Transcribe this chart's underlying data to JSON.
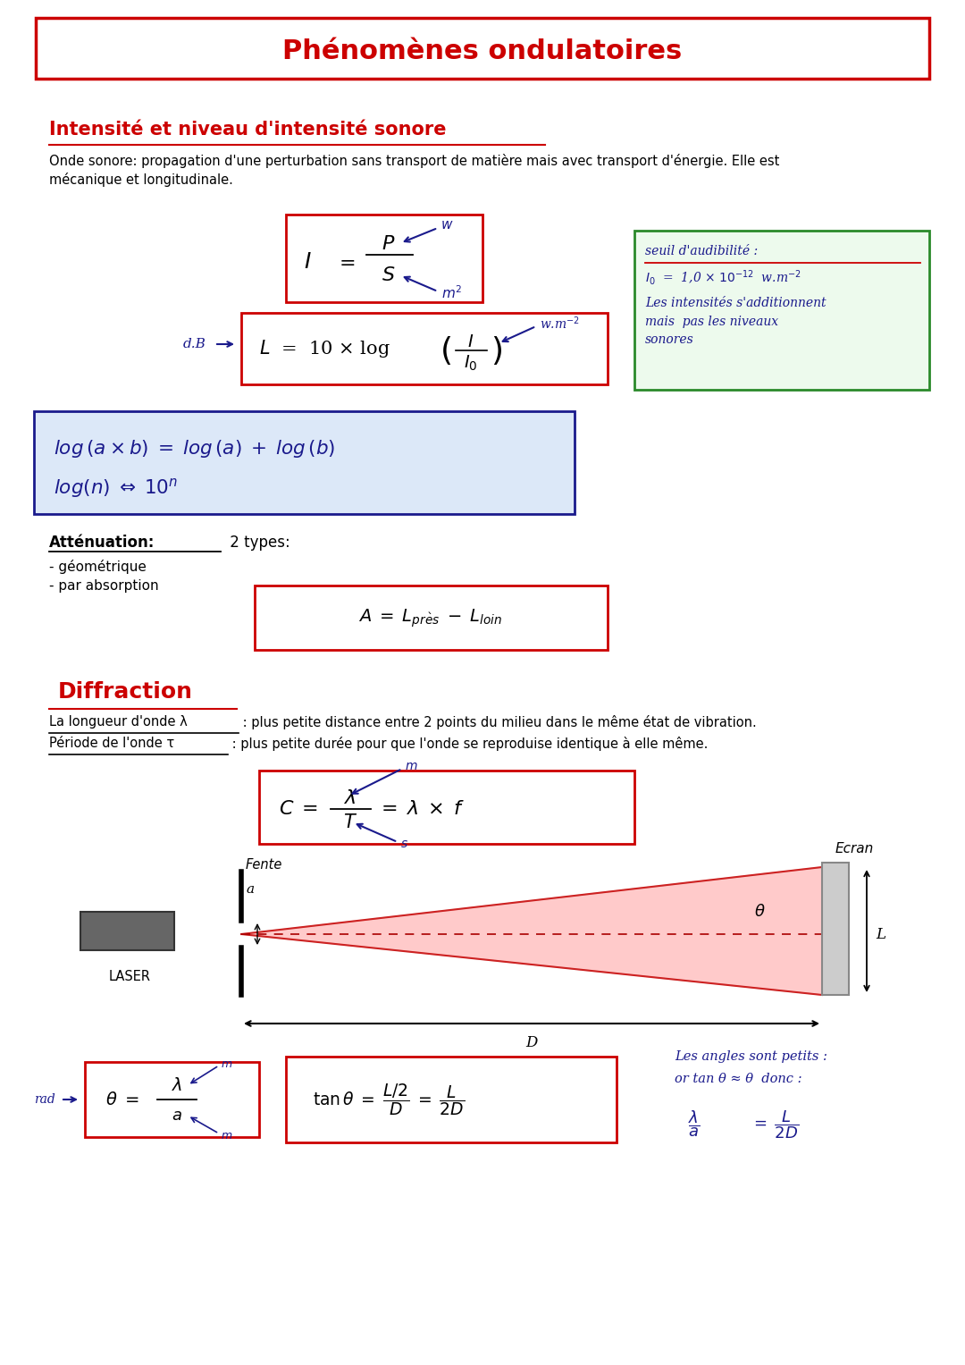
{
  "title": "Phénomènes ondulatoires",
  "red_color": "#cc0000",
  "dark_blue": "#1a1a8c",
  "green_color": "#2a8a2a",
  "light_blue_bg": "#dce8f8",
  "light_green_bg": "#edfaed",
  "bg_color": "#ffffff",
  "black": "#000000",
  "section1_title": "Intensité et niveau d'intensité sonore",
  "body_text1a": "Onde sonore: propagation d'une perturbation sans transport de matière mais avec transport d'énergie. Elle est",
  "body_text1b": "mécanique et longitudinale.",
  "seuil_title": "seuil d'audibilité :",
  "seuil_formula": "I₀  =  1,0 × 10⁻¹²  w.m⁻²",
  "seuil_note": "Les intensités s'additionnent\nmais  pas les niveaux\nsonores",
  "attenuation_label": "Atténuation:",
  "attenuation_suffix": " 2 types:",
  "attenuation_list1": "- géométrique",
  "attenuation_list2": "- par absorption",
  "section2_title": "Diffraction",
  "diff_line1a": "La longueur d'onde λ",
  "diff_line1b": " : plus petite distance entre 2 points du milieu dans le même état de vibration.",
  "diff_line2a": "Période de l'onde τ",
  "diff_line2b": " : plus petite durée pour que l'onde se reproduise identique à elle même.",
  "small_angles_line1": "Les angles sont petits :",
  "small_angles_line2": "or tan θ ≈ θ  donc :"
}
